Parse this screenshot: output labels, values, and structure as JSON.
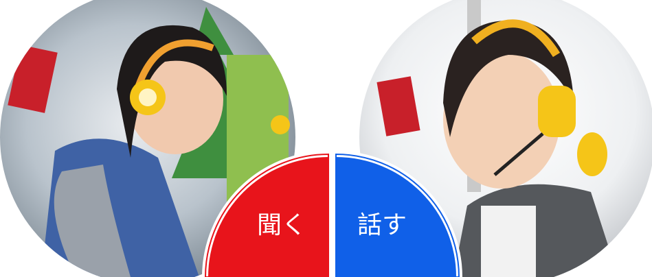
{
  "buttons": [
    {
      "label": "聞く"
    },
    {
      "label": "話す"
    }
  ]
}
